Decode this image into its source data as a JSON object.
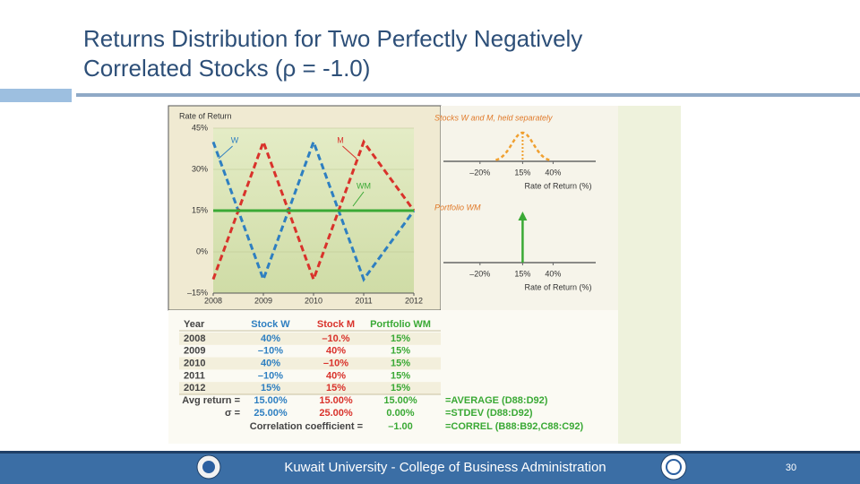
{
  "slide": {
    "title_lines": [
      "Returns Distribution for Two Perfectly Negatively",
      "Correlated Stocks (ρ = -1.0)"
    ],
    "footer": "Kuwait University - College of Business Administration",
    "page_number": "30"
  },
  "chart_data": [
    {
      "type": "line",
      "y_label": "Rate of Return",
      "x": [
        2008,
        2009,
        2010,
        2011,
        2012
      ],
      "series": [
        {
          "name": "W",
          "color": "#2e7fc1",
          "values": [
            40,
            -10,
            40,
            -10,
            15
          ]
        },
        {
          "name": "M",
          "color": "#d9322b",
          "values": [
            -10,
            40,
            -10,
            40,
            15
          ]
        },
        {
          "name": "WM",
          "color": "#3aa935",
          "values": [
            15,
            15,
            15,
            15,
            15
          ]
        }
      ],
      "xlim": [
        2008,
        2012
      ],
      "xticks": [
        2008,
        2009,
        2010,
        2011,
        2012
      ],
      "ylim": [
        -15,
        45
      ],
      "yticks": [
        {
          "value": -15,
          "label": "–15%"
        },
        {
          "value": 0,
          "label": "0%"
        },
        {
          "value": 15,
          "label": "15%"
        },
        {
          "value": 30,
          "label": "30%"
        },
        {
          "value": 45,
          "label": "45%"
        }
      ],
      "grid": true
    },
    {
      "type": "density",
      "title": "Stocks W and M, held separately",
      "x_label": "Rate of Return (%)",
      "mean": 15,
      "color": "#f0a030",
      "xlim": [
        -50,
        75
      ],
      "xticks": [
        {
          "value": -20,
          "label": "–20%"
        },
        {
          "value": 15,
          "label": "15%"
        },
        {
          "value": 40,
          "label": "40%"
        }
      ]
    },
    {
      "type": "spike",
      "title": "Portfolio WM",
      "x_label": "Rate of Return (%)",
      "value": 15,
      "color": "#3aa935",
      "xlim": [
        -50,
        75
      ],
      "xticks": [
        {
          "value": -20,
          "label": "–20%"
        },
        {
          "value": 15,
          "label": "15%"
        },
        {
          "value": 40,
          "label": "40%"
        }
      ]
    }
  ],
  "table": {
    "headers": [
      "Year",
      "Stock W",
      "Stock M",
      "Portfolio WM"
    ],
    "rows": [
      [
        "2008",
        "40%",
        "–10.%",
        "15%"
      ],
      [
        "2009",
        "–10%",
        "40%",
        "15%"
      ],
      [
        "2010",
        "40%",
        "–10%",
        "15%"
      ],
      [
        "2011",
        "–10%",
        "40%",
        "15%"
      ],
      [
        "2012",
        "15%",
        "15%",
        "15%"
      ]
    ],
    "avg_return": [
      "Avg return =",
      "15.00%",
      "15.00%",
      "15.00%",
      "=AVERAGE (D88:D92)"
    ],
    "sigma": [
      "σ =",
      "25.00%",
      "25.00%",
      "0.00%",
      "=STDEV (D88:D92)"
    ],
    "correlation": [
      "Correlation coefficient =",
      "–1.00",
      "=CORREL (B88:B92,C88:C92)"
    ]
  }
}
